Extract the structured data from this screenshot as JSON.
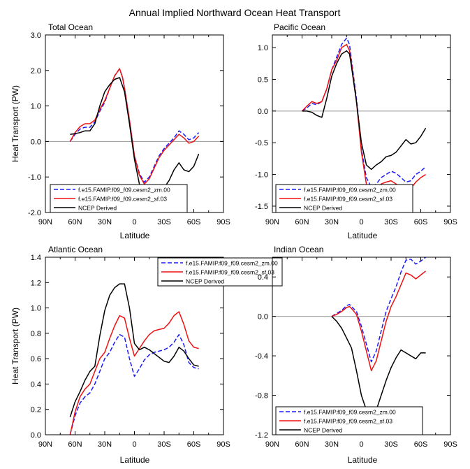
{
  "figure_title": "Annual Implied Northward Ocean Heat Transport",
  "colors": {
    "series1": "#1a1aff",
    "series2": "#ee1111",
    "series3": "#000000",
    "zero_line": "#999999"
  },
  "chart_data": [
    {
      "type": "line",
      "title": "Total Ocean",
      "ylabel": "Heat Transport (PW)",
      "xlabel": "Latitude",
      "xlim": [
        90,
        -90
      ],
      "ylim": [
        -2.0,
        3.0
      ],
      "xticks": [
        90,
        60,
        30,
        0,
        -30,
        -60,
        -90
      ],
      "xtick_labels": [
        "90N",
        "60N",
        "30N",
        "0",
        "30S",
        "60S",
        "90S"
      ],
      "yticks": [
        -2.0,
        -1.0,
        0.0,
        1.0,
        2.0,
        3.0
      ],
      "ytick_labels": [
        "-2.0",
        "-1.0",
        "0.0",
        "1.0",
        "2.0",
        "3.0"
      ],
      "zero_line": true,
      "legend_position": "bottom-left",
      "series": [
        {
          "name": "f.e15.FAMIP.f09_f09.cesm2_zm.00",
          "style": "dashed",
          "x": [
            65,
            60,
            55,
            50,
            45,
            40,
            35,
            30,
            25,
            20,
            15,
            12,
            10,
            5,
            0,
            -5,
            -10,
            -15,
            -20,
            -25,
            -30,
            -35,
            -40,
            -45,
            -50,
            -55,
            -60,
            -65
          ],
          "y": [
            0.0,
            0.2,
            0.35,
            0.4,
            0.4,
            0.55,
            0.85,
            1.1,
            1.5,
            1.85,
            2.05,
            1.8,
            1.5,
            0.6,
            -0.4,
            -0.9,
            -1.15,
            -1.0,
            -0.7,
            -0.4,
            -0.2,
            -0.05,
            0.1,
            0.3,
            0.2,
            0.05,
            0.1,
            0.25
          ]
        },
        {
          "name": "f.e15.FAMIP.f09_f09.cesm2_sf.03",
          "style": "solid",
          "x": [
            65,
            60,
            55,
            50,
            45,
            40,
            35,
            30,
            25,
            20,
            15,
            12,
            10,
            5,
            0,
            -5,
            -10,
            -15,
            -20,
            -25,
            -30,
            -35,
            -40,
            -45,
            -50,
            -55,
            -60,
            -65
          ],
          "y": [
            0.0,
            0.25,
            0.42,
            0.5,
            0.5,
            0.6,
            0.9,
            1.15,
            1.5,
            1.85,
            2.05,
            1.8,
            1.5,
            0.6,
            -0.4,
            -0.95,
            -1.2,
            -1.05,
            -0.75,
            -0.45,
            -0.25,
            -0.1,
            0.05,
            0.2,
            0.1,
            -0.05,
            0.0,
            0.15
          ]
        },
        {
          "name": "NCEP Derived",
          "style": "solid",
          "x": [
            65,
            60,
            55,
            50,
            45,
            40,
            35,
            30,
            25,
            20,
            15,
            10,
            5,
            0,
            -5,
            -10,
            -15,
            -20,
            -25,
            -30,
            -35,
            -40,
            -45,
            -50,
            -55,
            -60,
            -65
          ],
          "y": [
            0.2,
            0.22,
            0.25,
            0.3,
            0.3,
            0.5,
            1.0,
            1.4,
            1.6,
            1.75,
            1.8,
            1.4,
            0.5,
            -0.5,
            -1.2,
            -1.5,
            -1.6,
            -1.55,
            -1.4,
            -1.3,
            -1.1,
            -0.8,
            -0.6,
            -0.8,
            -0.85,
            -0.7,
            -0.35
          ]
        }
      ]
    },
    {
      "type": "line",
      "title": "Pacific Ocean",
      "ylabel": "",
      "xlabel": "Latitude",
      "xlim": [
        90,
        -90
      ],
      "ylim": [
        -1.6,
        1.2
      ],
      "xticks": [
        90,
        60,
        30,
        0,
        -30,
        -60,
        -90
      ],
      "xtick_labels": [
        "90N",
        "60N",
        "30N",
        "0",
        "30S",
        "60S",
        "90S"
      ],
      "yticks": [
        -1.5,
        -1.0,
        -0.5,
        0.0,
        0.5,
        1.0
      ],
      "ytick_labels": [
        "-1.5",
        "-1.0",
        "-0.5",
        "0.0",
        "0.5",
        "1.0"
      ],
      "zero_line": true,
      "legend_position": "bottom-left",
      "series": [
        {
          "name": "f.e15.FAMIP.f09_f09.cesm2_zm.00",
          "style": "dashed",
          "x": [
            60,
            55,
            50,
            45,
            40,
            35,
            30,
            25,
            20,
            15,
            12,
            10,
            5,
            0,
            -5,
            -10,
            -15,
            -20,
            -25,
            -30,
            -35,
            -40,
            -45,
            -50,
            -55,
            -60,
            -65
          ],
          "y": [
            0.0,
            0.05,
            0.12,
            0.1,
            0.15,
            0.35,
            0.65,
            0.85,
            1.05,
            1.15,
            1.05,
            0.8,
            0.2,
            -0.6,
            -1.05,
            -1.2,
            -1.15,
            -1.05,
            -1.0,
            -0.95,
            -0.98,
            -1.05,
            -1.12,
            -1.1,
            -1.0,
            -0.95,
            -0.88
          ]
        },
        {
          "name": "f.e15.FAMIP.f09_f09.cesm2_sf.03",
          "style": "solid",
          "x": [
            60,
            55,
            50,
            45,
            40,
            35,
            30,
            25,
            20,
            15,
            12,
            10,
            5,
            0,
            -5,
            -10,
            -15,
            -20,
            -25,
            -30,
            -35,
            -40,
            -45,
            -50,
            -55,
            -60,
            -65
          ],
          "y": [
            0.0,
            0.08,
            0.15,
            0.12,
            0.15,
            0.35,
            0.65,
            0.8,
            1.0,
            1.05,
            0.95,
            0.75,
            0.15,
            -0.65,
            -1.15,
            -1.3,
            -1.25,
            -1.15,
            -1.12,
            -1.1,
            -1.15,
            -1.2,
            -1.25,
            -1.22,
            -1.12,
            -1.05,
            -1.0
          ]
        },
        {
          "name": "NCEP Derived",
          "style": "solid",
          "x": [
            60,
            55,
            50,
            45,
            40,
            35,
            30,
            25,
            20,
            15,
            12,
            10,
            5,
            0,
            -5,
            -10,
            -15,
            -20,
            -25,
            -30,
            -35,
            -40,
            -45,
            -50,
            -55,
            -60,
            -65
          ],
          "y": [
            0.0,
            0.0,
            -0.02,
            -0.07,
            -0.1,
            0.2,
            0.55,
            0.75,
            0.9,
            0.95,
            0.9,
            0.7,
            0.15,
            -0.5,
            -0.85,
            -0.92,
            -0.85,
            -0.8,
            -0.72,
            -0.7,
            -0.65,
            -0.55,
            -0.45,
            -0.52,
            -0.5,
            -0.4,
            -0.27
          ]
        }
      ]
    },
    {
      "type": "line",
      "title": "Atlantic Ocean",
      "ylabel": "Heat Transport (PW)",
      "xlabel": "Latitude",
      "xlim": [
        90,
        -90
      ],
      "ylim": [
        0.0,
        1.4
      ],
      "xticks": [
        90,
        60,
        30,
        0,
        -30,
        -60,
        -90
      ],
      "xtick_labels": [
        "90N",
        "60N",
        "30N",
        "0",
        "30S",
        "60S",
        "90S"
      ],
      "yticks": [
        0.0,
        0.2,
        0.4,
        0.6,
        0.8,
        1.0,
        1.2,
        1.4
      ],
      "ytick_labels": [
        "0.0",
        "0.2",
        "0.4",
        "0.6",
        "0.8",
        "1.0",
        "1.2",
        "1.4"
      ],
      "zero_line": false,
      "legend_position": "top-right",
      "series": [
        {
          "name": "f.e15.FAMIP.f09_f09.cesm2_zm.00",
          "style": "dashed",
          "x": [
            65,
            60,
            55,
            50,
            45,
            40,
            35,
            30,
            25,
            20,
            15,
            10,
            5,
            0,
            -5,
            -10,
            -15,
            -20,
            -25,
            -30,
            -35,
            -40,
            -45,
            -50,
            -55,
            -60,
            -65
          ],
          "y": [
            0.0,
            0.15,
            0.25,
            0.3,
            0.33,
            0.4,
            0.5,
            0.6,
            0.65,
            0.73,
            0.79,
            0.77,
            0.6,
            0.46,
            0.52,
            0.59,
            0.63,
            0.65,
            0.66,
            0.67,
            0.69,
            0.73,
            0.79,
            0.71,
            0.57,
            0.53,
            0.52
          ]
        },
        {
          "name": "f.e15.FAMIP.f09_f09.cesm2_sf.03",
          "style": "solid",
          "x": [
            65,
            60,
            55,
            50,
            45,
            40,
            35,
            30,
            25,
            20,
            15,
            10,
            5,
            0,
            -5,
            -10,
            -15,
            -20,
            -25,
            -30,
            -35,
            -40,
            -45,
            -50,
            -55,
            -60,
            -65
          ],
          "y": [
            0.0,
            0.18,
            0.3,
            0.36,
            0.4,
            0.5,
            0.6,
            0.65,
            0.76,
            0.86,
            0.94,
            0.92,
            0.76,
            0.62,
            0.68,
            0.74,
            0.79,
            0.82,
            0.83,
            0.84,
            0.88,
            0.94,
            0.97,
            0.87,
            0.74,
            0.69,
            0.68
          ]
        },
        {
          "name": "NCEP Derived",
          "style": "solid",
          "x": [
            65,
            60,
            55,
            50,
            45,
            40,
            35,
            30,
            25,
            20,
            15,
            10,
            5,
            0,
            -5,
            -10,
            -15,
            -20,
            -25,
            -30,
            -35,
            -40,
            -45,
            -50,
            -55,
            -60,
            -65
          ],
          "y": [
            0.14,
            0.26,
            0.34,
            0.43,
            0.5,
            0.54,
            0.78,
            0.98,
            1.1,
            1.16,
            1.19,
            1.19,
            1.0,
            0.72,
            0.67,
            0.69,
            0.67,
            0.64,
            0.61,
            0.58,
            0.57,
            0.62,
            0.69,
            0.66,
            0.6,
            0.55,
            0.54
          ]
        }
      ]
    },
    {
      "type": "line",
      "title": "Indian Ocean",
      "ylabel": "",
      "xlabel": "Latitude",
      "xlim": [
        90,
        -90
      ],
      "ylim": [
        -1.2,
        0.6
      ],
      "xticks": [
        90,
        60,
        30,
        0,
        -30,
        -60,
        -90
      ],
      "xtick_labels": [
        "90N",
        "60N",
        "30N",
        "0",
        "30S",
        "60S",
        "90S"
      ],
      "yticks": [
        -1.2,
        -0.8,
        -0.4,
        0.0,
        0.4
      ],
      "ytick_labels": [
        "-1.2",
        "-0.8",
        "-0.4",
        "0.0",
        "0.4"
      ],
      "zero_line": true,
      "legend_position": "bottom-left",
      "series": [
        {
          "name": "f.e15.FAMIP.f09_f09.cesm2_zm.00",
          "style": "dashed",
          "x": [
            30,
            25,
            20,
            15,
            12,
            10,
            5,
            0,
            -5,
            -10,
            -15,
            -20,
            -25,
            -30,
            -35,
            -40,
            -45,
            -50,
            -55,
            -60,
            -65
          ],
          "y": [
            0.0,
            0.03,
            0.06,
            0.11,
            0.12,
            0.1,
            0.05,
            -0.1,
            -0.28,
            -0.46,
            -0.35,
            -0.15,
            0.05,
            0.18,
            0.3,
            0.45,
            0.57,
            0.58,
            0.53,
            0.56,
            0.6
          ]
        },
        {
          "name": "f.e15.FAMIP.f09_f09.cesm2_sf.03",
          "style": "solid",
          "x": [
            30,
            25,
            20,
            15,
            12,
            10,
            5,
            0,
            -5,
            -10,
            -15,
            -20,
            -25,
            -30,
            -35,
            -40,
            -45,
            -50,
            -55,
            -60,
            -65
          ],
          "y": [
            0.0,
            0.02,
            0.05,
            0.09,
            0.1,
            0.08,
            0.02,
            -0.15,
            -0.35,
            -0.55,
            -0.45,
            -0.25,
            -0.05,
            0.1,
            0.2,
            0.32,
            0.44,
            0.42,
            0.38,
            0.42,
            0.46
          ]
        },
        {
          "name": "NCEP Derived",
          "style": "solid",
          "x": [
            30,
            25,
            20,
            15,
            10,
            5,
            0,
            -5,
            -10,
            -15,
            -20,
            -25,
            -30,
            -35,
            -40,
            -45,
            -50,
            -55,
            -60,
            -65
          ],
          "y": [
            0.0,
            -0.05,
            -0.12,
            -0.22,
            -0.32,
            -0.55,
            -0.8,
            -0.95,
            -1.05,
            -0.95,
            -0.8,
            -0.65,
            -0.52,
            -0.42,
            -0.34,
            -0.37,
            -0.4,
            -0.43,
            -0.37,
            -0.37
          ]
        }
      ]
    }
  ]
}
